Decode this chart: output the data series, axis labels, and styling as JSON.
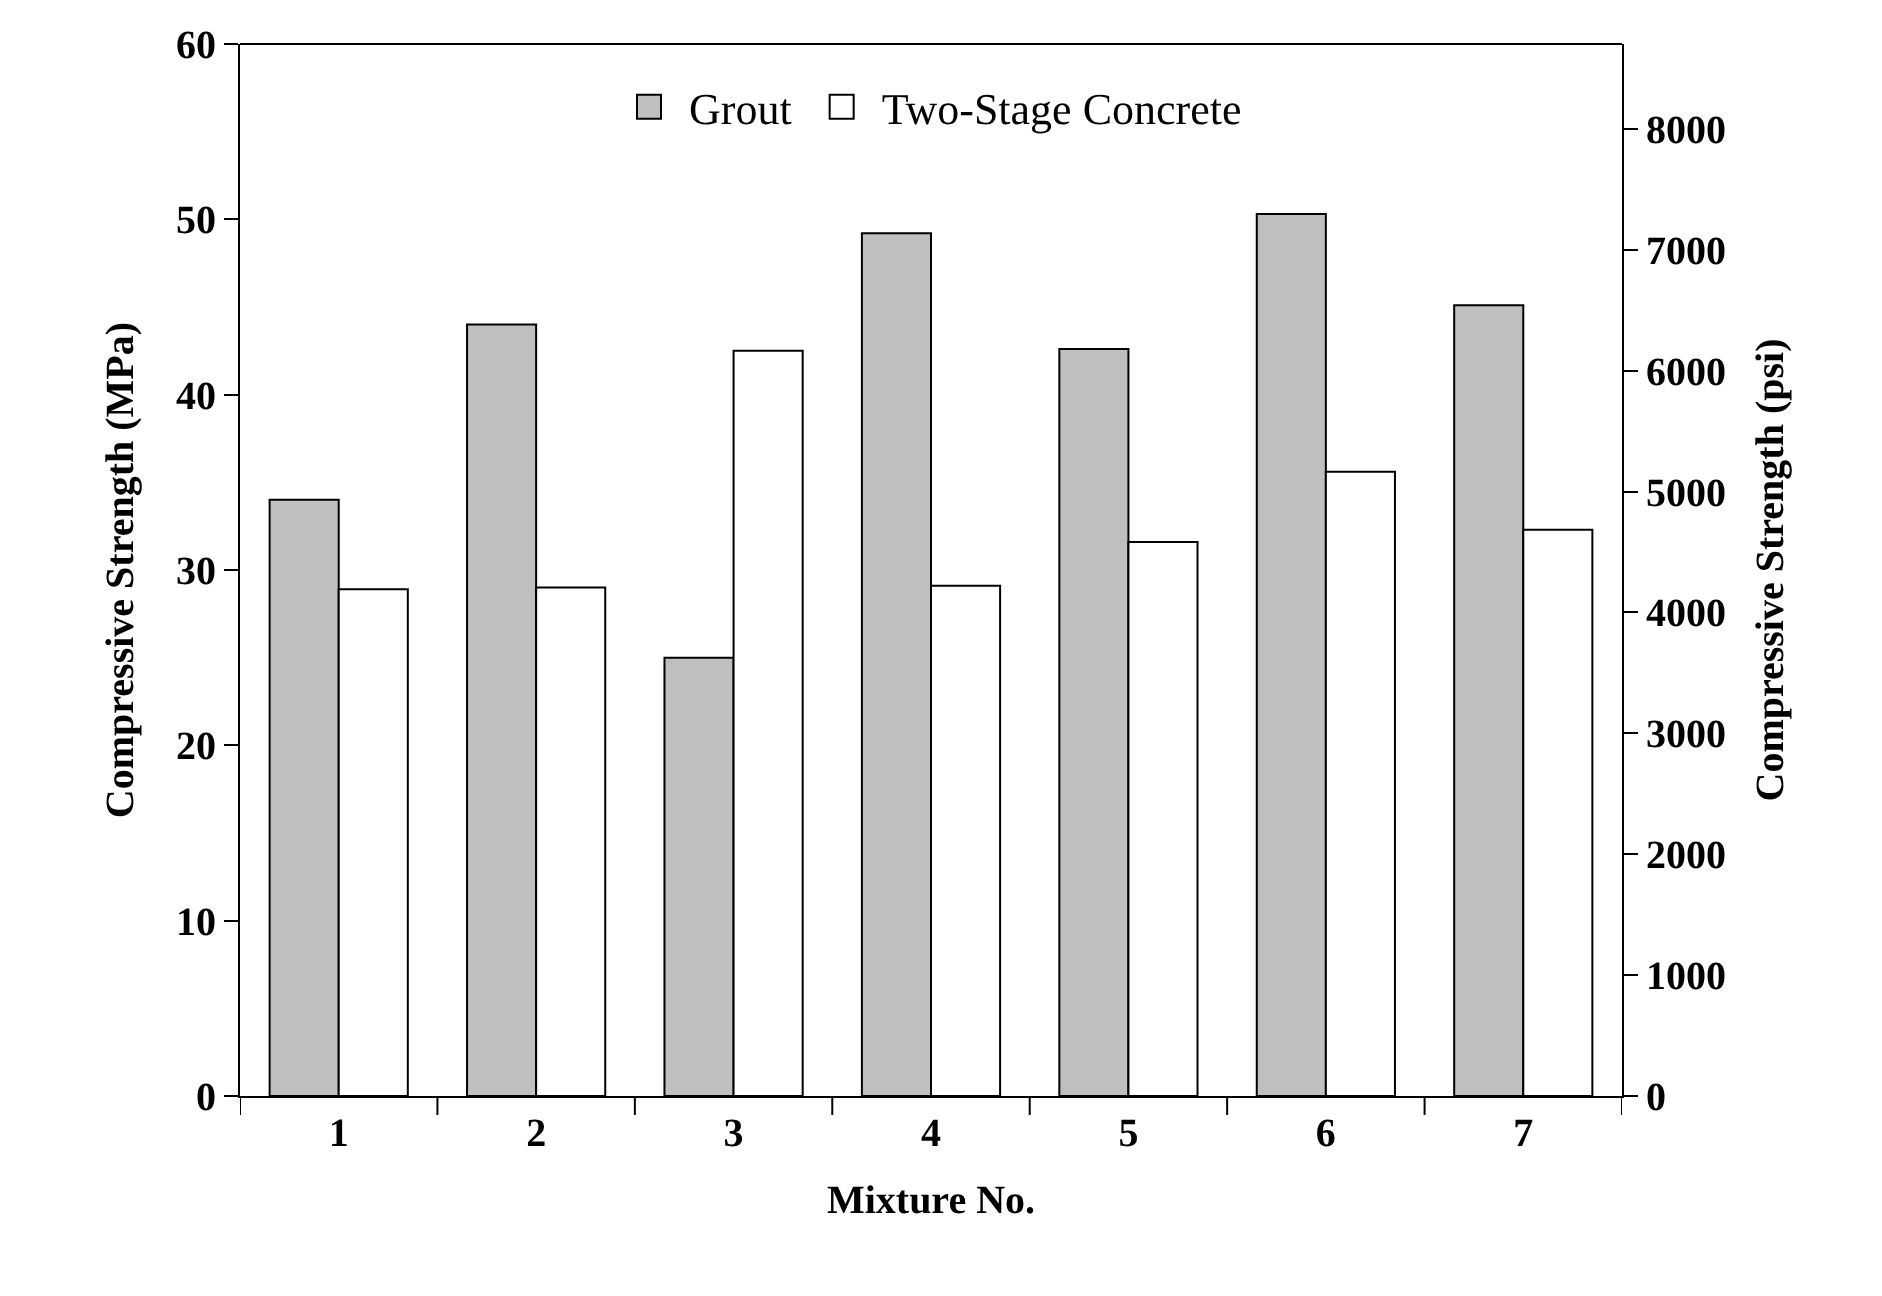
{
  "chart_data": {
    "type": "bar",
    "xlabel": "Mixture No.",
    "ylabel": "Compressive Strength (MPa)",
    "y2label": "Compressive Strength (psi)",
    "categories": [
      "1",
      "2",
      "3",
      "4",
      "5",
      "6",
      "7"
    ],
    "series": [
      {
        "name": "Grout",
        "color": "#bfbfbf",
        "values": [
          34.0,
          44.0,
          25.0,
          49.2,
          42.6,
          50.3,
          45.1
        ]
      },
      {
        "name": "Two-Stage Concrete",
        "color": "#ffffff",
        "values": [
          28.9,
          29.0,
          42.5,
          29.1,
          31.6,
          35.6,
          32.3
        ]
      }
    ],
    "ylim": [
      0,
      60
    ],
    "yticks": [
      0,
      10,
      20,
      30,
      40,
      50,
      60
    ],
    "y2lim": [
      0,
      8702
    ],
    "y2ticks": [
      0,
      1000,
      2000,
      3000,
      4000,
      5000,
      6000,
      7000,
      8000
    ],
    "legend": "top"
  }
}
